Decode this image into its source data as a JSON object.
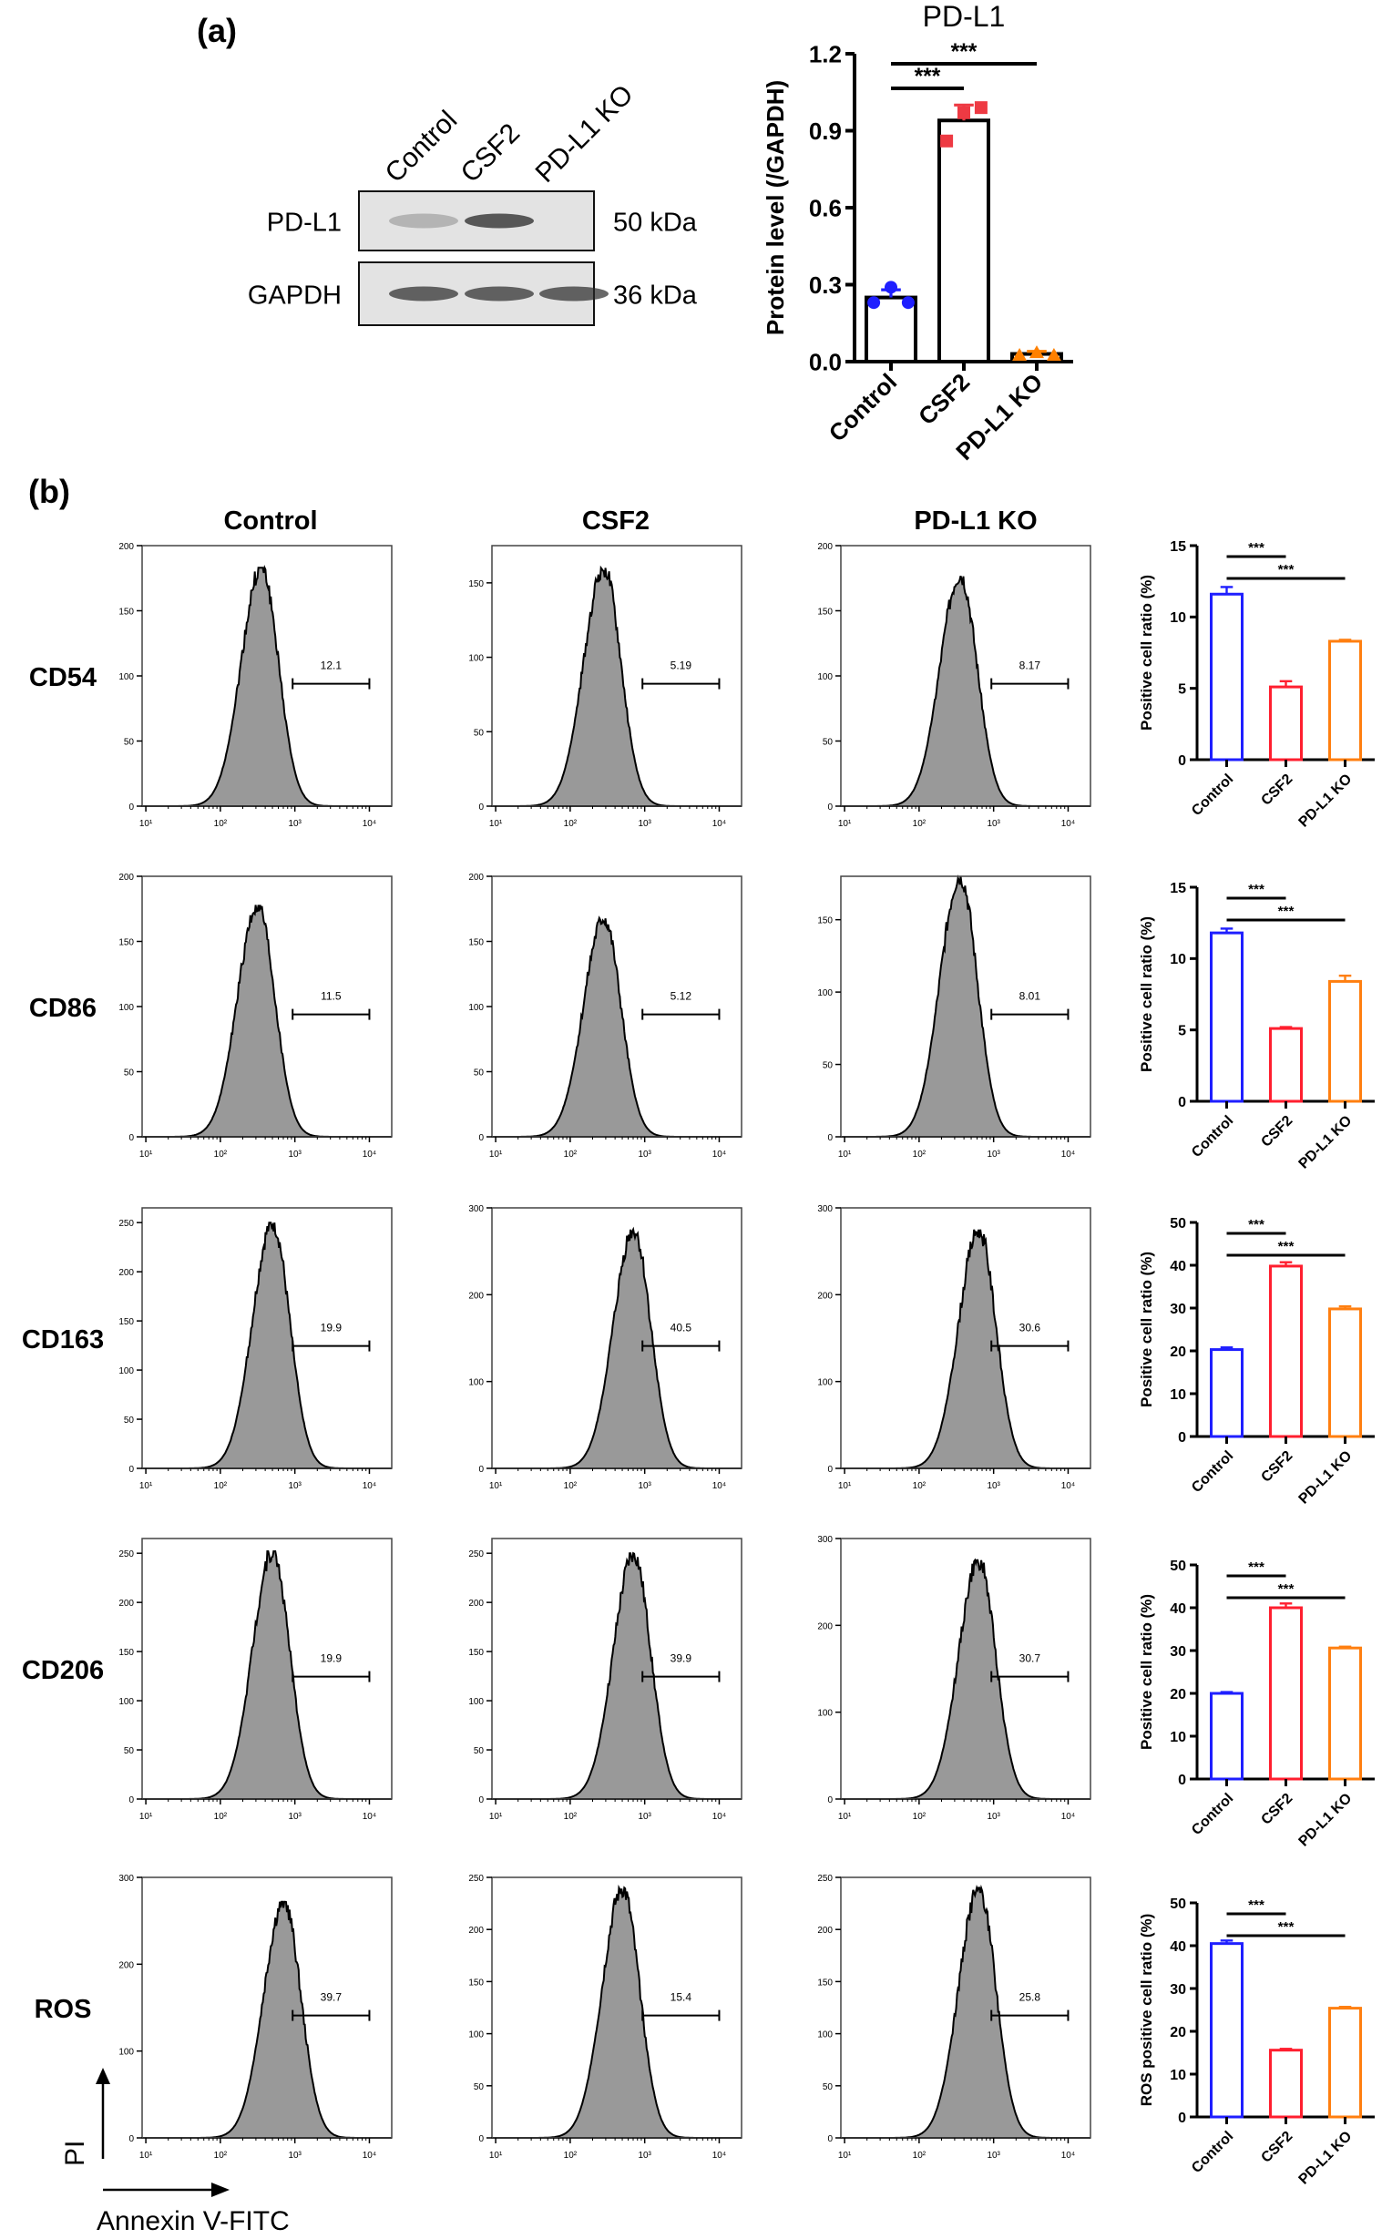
{
  "panel_a": {
    "label": "(a)",
    "western_blot": {
      "lanes": [
        "Control",
        "CSF2",
        "PD-L1 KO"
      ],
      "rows": [
        {
          "protein": "PD-L1",
          "size": "50 kDa",
          "intensity": [
            0.25,
            0.75,
            0.0
          ]
        },
        {
          "protein": "GAPDH",
          "size": "36 kDa",
          "intensity": [
            0.7,
            0.7,
            0.7
          ]
        }
      ]
    }
  },
  "panel_b": {
    "label": "(b)",
    "columns": [
      "Control",
      "CSF2",
      "PD-L1 KO"
    ],
    "x_tick_labels": [
      "10¹",
      "10²",
      "10³",
      "10⁴"
    ],
    "axis_y_label": "PI",
    "axis_x_label": "Annexin V-FITC"
  },
  "chart_data": [
    {
      "type": "bar",
      "title": "PD-L1",
      "ylabel": "Protein level (/GAPDH)",
      "categories": [
        "Control",
        "CSF2",
        "PD-L1 KO"
      ],
      "values": [
        0.25,
        0.94,
        0.03
      ],
      "errors": [
        0.03,
        0.06,
        0.01
      ],
      "points": [
        [
          0.23,
          0.29,
          0.23
        ],
        [
          0.86,
          0.97,
          0.99
        ],
        [
          0.025,
          0.035,
          0.025
        ]
      ],
      "ylim": [
        0,
        1.2
      ],
      "yticks": [
        "0.0",
        "0.3",
        "0.6",
        "0.9",
        "1.2"
      ],
      "colors": [
        "#1f1fff",
        "#ee3a43",
        "#ff8000"
      ],
      "significance": [
        {
          "from": 0,
          "to": 1,
          "label": "***"
        },
        {
          "from": 0,
          "to": 2,
          "label": "***"
        }
      ]
    },
    {
      "type": "histogram-grid",
      "rows": [
        {
          "marker": "CD54",
          "panels": [
            {
              "gate": "12.1",
              "ymax": 200,
              "yticks": [
                "0",
                "50",
                "100",
                "150",
                "200"
              ],
              "peak_log": 2.55,
              "peak_count": 183
            },
            {
              "gate": "5.19",
              "ymax": 175,
              "yticks": [
                "0",
                "50",
                "100",
                "150"
              ],
              "peak_log": 2.45,
              "peak_count": 160
            },
            {
              "gate": "8.17",
              "ymax": 200,
              "yticks": [
                "0",
                "50",
                "100",
                "150",
                "200"
              ],
              "peak_log": 2.55,
              "peak_count": 178
            }
          ]
        },
        {
          "marker": "CD86",
          "panels": [
            {
              "gate": "11.5",
              "ymax": 200,
              "yticks": [
                "0",
                "50",
                "100",
                "150",
                "200"
              ],
              "peak_log": 2.5,
              "peak_count": 178
            },
            {
              "gate": "5.12",
              "ymax": 200,
              "yticks": [
                "0",
                "50",
                "100",
                "150",
                "200"
              ],
              "peak_log": 2.45,
              "peak_count": 168
            },
            {
              "gate": "8.01",
              "ymax": 180,
              "yticks": [
                "0",
                "50",
                "100",
                "150"
              ],
              "peak_log": 2.55,
              "peak_count": 180
            }
          ]
        },
        {
          "marker": "CD163",
          "panels": [
            {
              "gate": "19.9",
              "ymax": 265,
              "yticks": [
                "0",
                "50",
                "100",
                "150",
                "200",
                "250"
              ],
              "peak_log": 2.7,
              "peak_count": 250
            },
            {
              "gate": "40.5",
              "ymax": 300,
              "yticks": [
                "0",
                "100",
                "200",
                "300"
              ],
              "peak_log": 2.85,
              "peak_count": 275
            },
            {
              "gate": "30.6",
              "ymax": 300,
              "yticks": [
                "0",
                "100",
                "200",
                "300"
              ],
              "peak_log": 2.8,
              "peak_count": 275
            }
          ]
        },
        {
          "marker": "CD206",
          "panels": [
            {
              "gate": "19.9",
              "ymax": 265,
              "yticks": [
                "0",
                "50",
                "100",
                "150",
                "200",
                "250"
              ],
              "peak_log": 2.7,
              "peak_count": 252
            },
            {
              "gate": "39.9",
              "ymax": 265,
              "yticks": [
                "0",
                "50",
                "100",
                "150",
                "200",
                "250"
              ],
              "peak_log": 2.85,
              "peak_count": 250
            },
            {
              "gate": "30.7",
              "ymax": 300,
              "yticks": [
                "0",
                "100",
                "200",
                "300"
              ],
              "peak_log": 2.8,
              "peak_count": 275
            }
          ]
        },
        {
          "marker": "ROS",
          "panels": [
            {
              "gate": "39.7",
              "ymax": 300,
              "yticks": [
                "0",
                "100",
                "200",
                "300"
              ],
              "peak_log": 2.85,
              "peak_count": 272
            },
            {
              "gate": "15.4",
              "ymax": 250,
              "yticks": [
                "0",
                "50",
                "100",
                "150",
                "200",
                "250"
              ],
              "peak_log": 2.7,
              "peak_count": 240
            },
            {
              "gate": "25.8",
              "ymax": 250,
              "yticks": [
                "0",
                "50",
                "100",
                "150",
                "200",
                "250"
              ],
              "peak_log": 2.8,
              "peak_count": 240
            }
          ]
        }
      ]
    },
    {
      "type": "bar",
      "marker": "CD54",
      "ylabel": "Positive cell ratio (%)",
      "categories": [
        "Control",
        "CSF2",
        "PD-L1 KO"
      ],
      "values": [
        11.6,
        5.1,
        8.3
      ],
      "errors": [
        0.5,
        0.4,
        0.1
      ],
      "ylim": [
        0,
        15
      ],
      "yticks": [
        "0",
        "5",
        "10",
        "15"
      ],
      "colors": [
        "#1f1fff",
        "#ff1f2f",
        "#ff7f10"
      ],
      "significance": [
        {
          "from": 0,
          "to": 1,
          "label": "***"
        },
        {
          "from": 0,
          "to": 2,
          "label": "***"
        }
      ]
    },
    {
      "type": "bar",
      "marker": "CD86",
      "ylabel": "Positive cell ratio (%)",
      "categories": [
        "Control",
        "CSF2",
        "PD-L1 KO"
      ],
      "values": [
        11.8,
        5.1,
        8.4
      ],
      "errors": [
        0.3,
        0.1,
        0.4
      ],
      "ylim": [
        0,
        15
      ],
      "yticks": [
        "0",
        "5",
        "10",
        "15"
      ],
      "colors": [
        "#1f1fff",
        "#ff1f2f",
        "#ff7f10"
      ],
      "significance": [
        {
          "from": 0,
          "to": 1,
          "label": "***"
        },
        {
          "from": 0,
          "to": 2,
          "label": "***"
        }
      ]
    },
    {
      "type": "bar",
      "marker": "CD163",
      "ylabel": "Positive cell ratio (%)",
      "categories": [
        "Control",
        "CSF2",
        "PD-L1 KO"
      ],
      "values": [
        20.3,
        39.8,
        29.8
      ],
      "errors": [
        0.5,
        0.9,
        0.6
      ],
      "ylim": [
        0,
        50
      ],
      "yticks": [
        "0",
        "10",
        "20",
        "30",
        "40",
        "50"
      ],
      "colors": [
        "#1f1fff",
        "#ff1f2f",
        "#ff7f10"
      ],
      "significance": [
        {
          "from": 0,
          "to": 1,
          "label": "***"
        },
        {
          "from": 0,
          "to": 2,
          "label": "***"
        }
      ]
    },
    {
      "type": "bar",
      "marker": "CD206",
      "ylabel": "Positive cell ratio (%)",
      "categories": [
        "Control",
        "CSF2",
        "PD-L1 KO"
      ],
      "values": [
        20.0,
        40.0,
        30.6
      ],
      "errors": [
        0.3,
        1.0,
        0.3
      ],
      "ylim": [
        0,
        50
      ],
      "yticks": [
        "0",
        "10",
        "20",
        "30",
        "40",
        "50"
      ],
      "colors": [
        "#1f1fff",
        "#ff1f2f",
        "#ff7f10"
      ],
      "significance": [
        {
          "from": 0,
          "to": 1,
          "label": "***"
        },
        {
          "from": 0,
          "to": 2,
          "label": "***"
        }
      ]
    },
    {
      "type": "bar",
      "marker": "ROS",
      "ylabel": "ROS positive cell ratio (%)",
      "categories": [
        "Control",
        "CSF2",
        "PD-L1 KO"
      ],
      "values": [
        40.5,
        15.6,
        25.4
      ],
      "errors": [
        0.7,
        0.3,
        0.3
      ],
      "ylim": [
        0,
        50
      ],
      "yticks": [
        "0",
        "10",
        "20",
        "30",
        "40",
        "50"
      ],
      "colors": [
        "#1f1fff",
        "#ff1f2f",
        "#ff7f10"
      ],
      "significance": [
        {
          "from": 0,
          "to": 1,
          "label": "***"
        },
        {
          "from": 0,
          "to": 2,
          "label": "***"
        }
      ]
    }
  ]
}
